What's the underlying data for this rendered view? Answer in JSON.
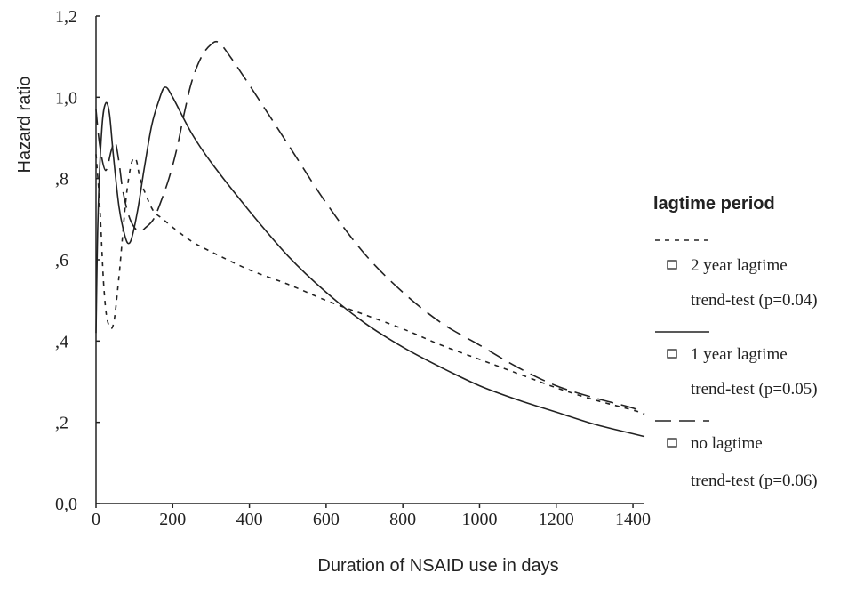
{
  "chart_data": {
    "type": "line",
    "xlabel": "Duration of NSAID use in days",
    "ylabel": "Hazard ratio",
    "xlim": [
      0,
      1430
    ],
    "ylim": [
      0,
      1.2
    ],
    "x_ticks": [
      "0",
      "200",
      "400",
      "600",
      "800",
      "1000",
      "1200",
      "1400"
    ],
    "y_ticks": [
      "0,0",
      ",2",
      ",4",
      ",6",
      ",8",
      "1,0",
      "1,2"
    ],
    "legend": {
      "title": "lagtime period",
      "placement": "right",
      "entries": [
        {
          "label": "2 year lagtime",
          "sublabel": "trend-test (p=0.04)"
        },
        {
          "label": "1 year lagtime",
          "sublabel": "trend-test (p=0.05)"
        },
        {
          "label": "no lagtime",
          "sublabel": "trend-test (p=0.06)"
        }
      ]
    },
    "series": [
      {
        "name": "2 year lagtime",
        "style": "short-dash",
        "points": [
          [
            0,
            0.86
          ],
          [
            10,
            0.73
          ],
          [
            20,
            0.54
          ],
          [
            30,
            0.45
          ],
          [
            45,
            0.44
          ],
          [
            60,
            0.56
          ],
          [
            75,
            0.72
          ],
          [
            85,
            0.8
          ],
          [
            95,
            0.845
          ],
          [
            105,
            0.845
          ],
          [
            115,
            0.8
          ],
          [
            130,
            0.76
          ],
          [
            150,
            0.72
          ],
          [
            175,
            0.7
          ],
          [
            200,
            0.68
          ],
          [
            250,
            0.645
          ],
          [
            300,
            0.62
          ],
          [
            400,
            0.575
          ],
          [
            500,
            0.54
          ],
          [
            600,
            0.5
          ],
          [
            700,
            0.465
          ],
          [
            800,
            0.43
          ],
          [
            900,
            0.39
          ],
          [
            1000,
            0.355
          ],
          [
            1100,
            0.32
          ],
          [
            1200,
            0.285
          ],
          [
            1300,
            0.255
          ],
          [
            1400,
            0.23
          ],
          [
            1430,
            0.22
          ]
        ]
      },
      {
        "name": "1 year lagtime",
        "style": "solid",
        "points": [
          [
            0,
            0.42
          ],
          [
            5,
            0.7
          ],
          [
            15,
            0.92
          ],
          [
            25,
            0.985
          ],
          [
            35,
            0.96
          ],
          [
            45,
            0.86
          ],
          [
            60,
            0.73
          ],
          [
            75,
            0.66
          ],
          [
            85,
            0.64
          ],
          [
            95,
            0.66
          ],
          [
            110,
            0.73
          ],
          [
            125,
            0.82
          ],
          [
            145,
            0.93
          ],
          [
            165,
            0.995
          ],
          [
            180,
            1.025
          ],
          [
            200,
            1.0
          ],
          [
            250,
            0.91
          ],
          [
            300,
            0.84
          ],
          [
            400,
            0.72
          ],
          [
            500,
            0.61
          ],
          [
            600,
            0.52
          ],
          [
            700,
            0.445
          ],
          [
            800,
            0.385
          ],
          [
            900,
            0.335
          ],
          [
            1000,
            0.29
          ],
          [
            1100,
            0.255
          ],
          [
            1200,
            0.225
          ],
          [
            1300,
            0.195
          ],
          [
            1400,
            0.172
          ],
          [
            1430,
            0.165
          ]
        ]
      },
      {
        "name": "no lagtime",
        "style": "long-dash",
        "points": [
          [
            0,
            0.97
          ],
          [
            10,
            0.88
          ],
          [
            25,
            0.82
          ],
          [
            40,
            0.87
          ],
          [
            50,
            0.89
          ],
          [
            60,
            0.84
          ],
          [
            70,
            0.77
          ],
          [
            85,
            0.71
          ],
          [
            100,
            0.68
          ],
          [
            115,
            0.67
          ],
          [
            130,
            0.68
          ],
          [
            150,
            0.7
          ],
          [
            170,
            0.745
          ],
          [
            190,
            0.8
          ],
          [
            210,
            0.87
          ],
          [
            230,
            0.96
          ],
          [
            250,
            1.04
          ],
          [
            275,
            1.1
          ],
          [
            300,
            1.13
          ],
          [
            320,
            1.135
          ],
          [
            350,
            1.1
          ],
          [
            400,
            1.03
          ],
          [
            500,
            0.885
          ],
          [
            600,
            0.74
          ],
          [
            700,
            0.615
          ],
          [
            800,
            0.52
          ],
          [
            900,
            0.445
          ],
          [
            1000,
            0.39
          ],
          [
            1100,
            0.335
          ],
          [
            1200,
            0.29
          ],
          [
            1300,
            0.26
          ],
          [
            1400,
            0.235
          ],
          [
            1430,
            0.22
          ]
        ]
      }
    ]
  }
}
